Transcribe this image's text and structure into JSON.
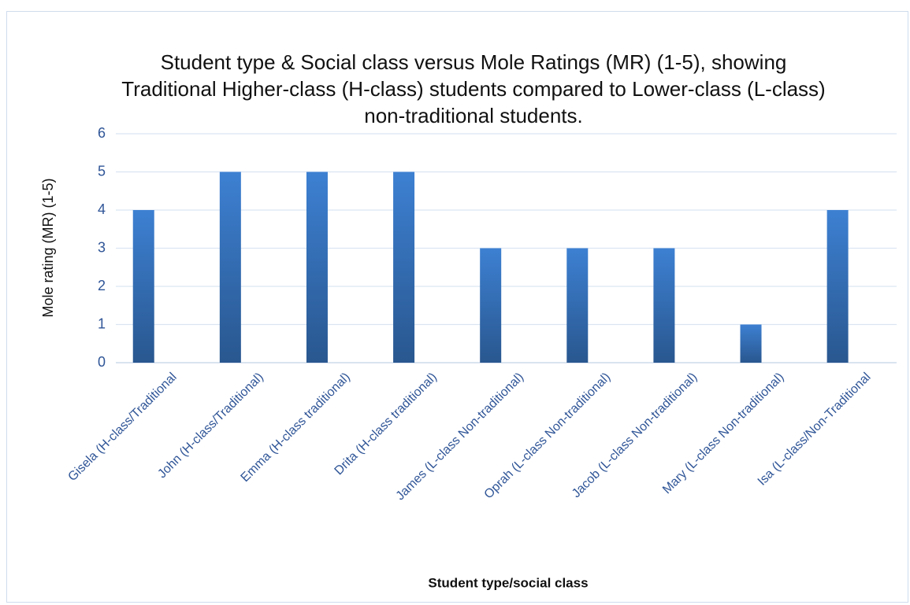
{
  "chart_data": {
    "type": "bar",
    "title": "Student type & Social class versus Mole Ratings (MR) (1-5), showing Traditional Higher-class (H-class) students compared to Lower-class (L-class) non-traditional students.",
    "x_label": "Student type/social class",
    "y_label": "Mole rating (MR) (1-5)",
    "categories": [
      "Gisela (H-class/Traditional",
      "John (H-class/Traditional)",
      "Emma (H-class traditional)",
      "Drita (H-class traditional)",
      "James (L-class Non-traditional)",
      "Oprah (L-class Non-traditional)",
      "Jacob (L-class Non-traditional)",
      "Mary (L-class Non-traditional)",
      "Isa (L-class/Non-Traditional"
    ],
    "values": [
      4,
      5,
      5,
      5,
      3,
      3,
      3,
      1,
      4
    ],
    "color": "#3d80d2",
    "ylim": [
      0,
      6
    ],
    "yticks": [
      0,
      1,
      2,
      3,
      4,
      5,
      6
    ],
    "grid": true
  }
}
